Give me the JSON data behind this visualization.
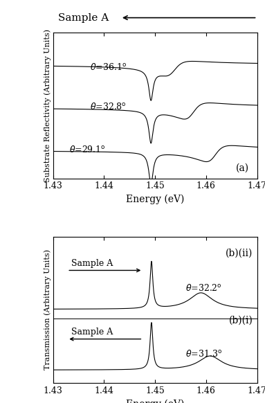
{
  "xlim": [
    1.43,
    1.47
  ],
  "xlabel": "Energy (eV)",
  "xticks": [
    1.43,
    1.44,
    1.45,
    1.46,
    1.47
  ],
  "top_ylabel": "Substrate Reflectivity (Arbitrary Units)",
  "bottom_ylabel": "Transmission (Arbitrary Units)",
  "top_label": "(a)",
  "bottom_label_ii": "(b)(ii)",
  "bottom_label_i": "(b)(i)",
  "bg_color": "#ffffff",
  "line_color": "#000000",
  "font_size_tick": 9,
  "font_size_label": 10,
  "font_size_angle": 9,
  "font_size_panel": 10,
  "font_size_title": 11
}
